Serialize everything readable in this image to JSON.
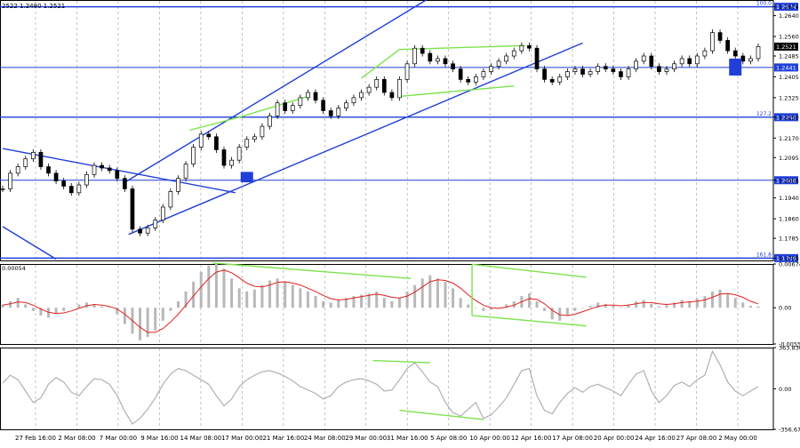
{
  "chart_data": {
    "type": "candlestick",
    "header_text": "2522 1.2480 1.2521",
    "price_axis": {
      "min": 1.17,
      "max": 1.27,
      "ticks": [
        "1.2674",
        "1.2640",
        "1.2560",
        "1.2485",
        "1.2405",
        "1.2325",
        "1.2250",
        "1.2170",
        "1.2095",
        "1.2008",
        "1.1940",
        "1.1860",
        "1.1785",
        "1.1709"
      ],
      "current_price": "1.2521"
    },
    "horizontal_levels": [
      {
        "price": 1.2674,
        "label": "1.2674",
        "fib_label": "100.0"
      },
      {
        "price": 1.2441,
        "label": "1.2441",
        "fib_label": ""
      },
      {
        "price": 1.225,
        "label": "1.2250",
        "fib_label": "127.2"
      },
      {
        "price": 1.2008,
        "label": "1.2008",
        "fib_label": ""
      },
      {
        "price": 1.1709,
        "label": "1.1709",
        "fib_label": "161.8"
      }
    ],
    "x_labels": [
      "27 Feb 16:00",
      "2 Mar 08:00",
      "7 Mar 00:00",
      "9 Mar 16:00",
      "14 Mar 08:00",
      "17 Mar 00:00",
      "21 Mar 16:00",
      "24 Mar 08:00",
      "29 Mar 00:00",
      "31 Mar 16:00",
      "5 Apr 08:00",
      "10 Apr 00:00",
      "12 Apr 16:00",
      "17 Apr 08:00",
      "20 Apr 00:00",
      "24 Apr 16:00",
      "27 Apr 08:00",
      "2 May 00:00"
    ],
    "price_series": [
      1.1975,
      1.2035,
      1.206,
      1.209,
      1.2115,
      1.206,
      1.2035,
      1.2005,
      1.1985,
      1.196,
      1.199,
      1.203,
      1.2065,
      1.2055,
      1.2045,
      1.2015,
      1.1975,
      1.182,
      1.1805,
      1.1825,
      1.1855,
      1.1905,
      1.1965,
      1.2015,
      1.207,
      1.2135,
      1.2185,
      1.2175,
      1.2125,
      1.2065,
      1.2085,
      1.2135,
      1.2165,
      1.2175,
      1.2215,
      1.2255,
      1.2305,
      1.2275,
      1.2295,
      1.2325,
      1.2345,
      1.2315,
      1.2275,
      1.2255,
      1.2285,
      1.2305,
      1.2325,
      1.2345,
      1.2365,
      1.2395,
      1.2345,
      1.2325,
      1.2395,
      1.2455,
      1.2515,
      1.2495,
      1.2465,
      1.2475,
      1.2455,
      1.2435,
      1.2395,
      1.2385,
      1.2405,
      1.2425,
      1.2445,
      1.2465,
      1.2485,
      1.2505,
      1.2525,
      1.2515,
      1.2435,
      1.2395,
      1.2385,
      1.2405,
      1.2425,
      1.2435,
      1.2415,
      1.2425,
      1.2445,
      1.2435,
      1.2425,
      1.2405,
      1.2435,
      1.2465,
      1.2485,
      1.2445,
      1.2425,
      1.2435,
      1.2455,
      1.2475,
      1.2455,
      1.2485,
      1.2505,
      1.2575,
      1.2545,
      1.2505,
      1.2485,
      1.2465,
      1.2475,
      1.2521
    ],
    "zones": [
      {
        "x_index": 32,
        "price_low": 1.2,
        "price_high": 1.204
      },
      {
        "x_index": 96,
        "price_low": 1.241,
        "price_high": 1.2475
      }
    ],
    "macd": {
      "top_label": "0.00054",
      "ticks": [
        "0.00674",
        "0.00",
        "-0.00559"
      ],
      "min": -0.00559,
      "max": 0.00674,
      "histogram": [
        0.0005,
        0.001,
        0.0015,
        0.0005,
        -0.0005,
        -0.0012,
        -0.0015,
        -0.001,
        -0.0005,
        0.0,
        0.0005,
        0.0008,
        0.0005,
        0.0002,
        0.0,
        -0.001,
        -0.0025,
        -0.004,
        -0.005,
        -0.0045,
        -0.0035,
        -0.002,
        -0.0005,
        0.001,
        0.0025,
        0.004,
        0.0055,
        0.0065,
        0.0068,
        0.006,
        0.0045,
        0.003,
        0.0025,
        0.0028,
        0.0035,
        0.0042,
        0.0045,
        0.004,
        0.0035,
        0.003,
        0.0025,
        0.0018,
        0.001,
        0.0008,
        0.0012,
        0.0015,
        0.0018,
        0.002,
        0.0022,
        0.0025,
        0.0015,
        0.001,
        0.0015,
        0.0025,
        0.0035,
        0.0045,
        0.005,
        0.0045,
        0.004,
        0.003,
        0.0015,
        0.0005,
        0.0,
        -0.0005,
        -0.0003,
        0.0,
        0.0005,
        0.001,
        0.0018,
        0.0022,
        0.001,
        -0.0005,
        -0.0018,
        -0.002,
        -0.0012,
        -0.0005,
        0.0,
        0.0003,
        0.0008,
        0.0006,
        0.0003,
        0.0,
        0.0005,
        0.001,
        0.0012,
        0.0006,
        0.0002,
        0.0004,
        0.0008,
        0.0012,
        0.001,
        0.0014,
        0.0018,
        0.0025,
        0.0028,
        0.0022,
        0.0015,
        0.0008,
        0.0003,
        0.0002
      ],
      "signal": [
        0.0004,
        0.0006,
        0.0009,
        0.0008,
        0.0004,
        -0.0002,
        -0.0007,
        -0.0009,
        -0.0008,
        -0.0005,
        -0.0001,
        0.0003,
        0.0005,
        0.0004,
        0.0002,
        -0.0002,
        -0.001,
        -0.002,
        -0.003,
        -0.0038,
        -0.0038,
        -0.0032,
        -0.0022,
        -0.001,
        0.0004,
        0.0018,
        0.0032,
        0.0045,
        0.0055,
        0.0058,
        0.0054,
        0.0046,
        0.0038,
        0.0033,
        0.0032,
        0.0035,
        0.0039,
        0.004,
        0.0038,
        0.0035,
        0.003,
        0.0025,
        0.0019,
        0.0014,
        0.0012,
        0.0013,
        0.0015,
        0.0017,
        0.0019,
        0.0021,
        0.0019,
        0.0016,
        0.0015,
        0.0018,
        0.0024,
        0.0032,
        0.004,
        0.0043,
        0.0042,
        0.0038,
        0.003,
        0.002,
        0.0011,
        0.0004,
        0.0,
        -0.0001,
        0.0001,
        0.0004,
        0.0009,
        0.0014,
        0.0013,
        0.0006,
        -0.0004,
        -0.0011,
        -0.0012,
        -0.001,
        -0.0006,
        -0.0002,
        0.0002,
        0.0004,
        0.0004,
        0.0003,
        0.0004,
        0.0006,
        0.0008,
        0.0008,
        0.0006,
        0.0005,
        0.0006,
        0.0008,
        0.0009,
        0.001,
        0.0012,
        0.0016,
        0.0021,
        0.0022,
        0.002,
        0.0016,
        0.001,
        0.0006
      ]
    },
    "cci": {
      "ticks": [
        "363.8361",
        "0.00",
        "-356.6761"
      ],
      "min": -356.6761,
      "max": 363.8361,
      "values": [
        50,
        120,
        80,
        -20,
        -120,
        -80,
        40,
        100,
        60,
        -30,
        -60,
        20,
        90,
        80,
        40,
        -60,
        -200,
        -310,
        -260,
        -180,
        -80,
        40,
        130,
        180,
        160,
        120,
        80,
        40,
        -60,
        -150,
        -90,
        20,
        80,
        120,
        150,
        160,
        140,
        110,
        70,
        20,
        -10,
        -40,
        -90,
        -60,
        20,
        60,
        80,
        90,
        70,
        40,
        -20,
        -10,
        80,
        180,
        230,
        150,
        60,
        20,
        -120,
        -210,
        -240,
        -180,
        -120,
        -260,
        -230,
        -160,
        -80,
        40,
        160,
        180,
        -60,
        -190,
        -220,
        -120,
        -40,
        10,
        -30,
        20,
        40,
        10,
        -20,
        -60,
        40,
        130,
        160,
        -20,
        -120,
        -60,
        30,
        60,
        20,
        80,
        120,
        330,
        210,
        60,
        -20,
        -60,
        -20,
        20
      ]
    }
  }
}
